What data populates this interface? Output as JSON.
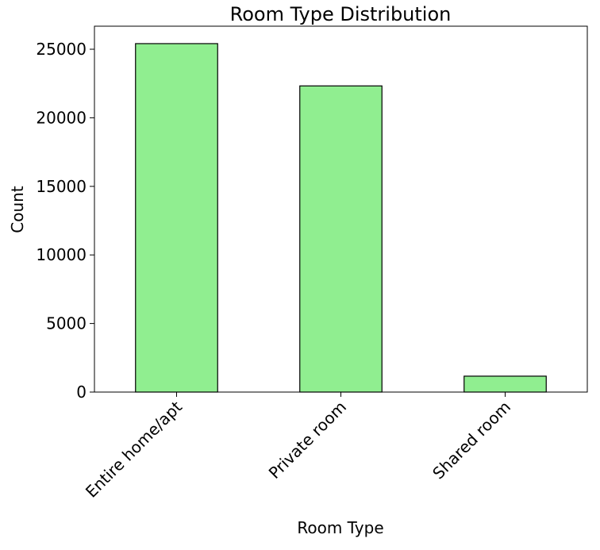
{
  "chart_data": {
    "type": "bar",
    "title": "Room Type Distribution",
    "xlabel": "Room Type",
    "ylabel": "Count",
    "categories": [
      "Entire home/apt",
      "Private room",
      "Shared room"
    ],
    "values": [
      25409,
      22326,
      1160
    ],
    "ylim": [
      0,
      26680
    ],
    "yticks": [
      0,
      5000,
      10000,
      15000,
      20000,
      25000
    ],
    "grid": false,
    "bar_color": "#90ee90",
    "edge_color": "#000000"
  }
}
